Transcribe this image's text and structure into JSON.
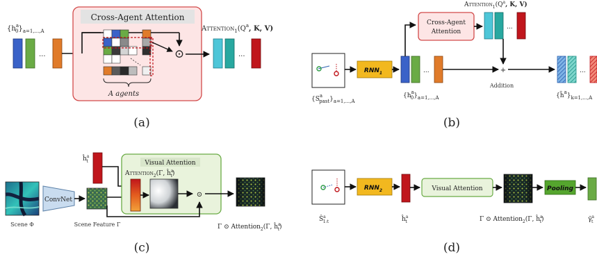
{
  "colors": {
    "blue": "#3a62c8",
    "green": "#6aab45",
    "orange": "#e07b2a",
    "cyan": "#4ec6d8",
    "teal": "#28a8a0",
    "red": "#c0161c",
    "attn_bg": "#fde5e5",
    "attn_border": "#d24a4a",
    "visual_bg": "#e9f3dc",
    "visual_border": "#6aab45",
    "rnn_fill": "#f2b81f",
    "pooling_fill": "#55a52e"
  },
  "panel_a": {
    "caption": "(a)",
    "input_label": "{h",
    "input_sup": "a",
    "input_sub": "0",
    "input_sub2": "a=1,...,A",
    "ellipsis": "...",
    "box_title": "Cross-Agent Attention",
    "dot_symbol": "⊙",
    "agents_label": "A agents",
    "output_label": "Attention",
    "output_args": "(Q",
    "output_args2": ", K, V)",
    "output_sup": "a",
    "output_sub": "1"
  },
  "panel_b": {
    "caption": "(b)",
    "scene_label": "{S",
    "scene_sup": "a",
    "scene_sub": "past",
    "scene_sub2": "a=1,...,A",
    "rnn_label": "RNN",
    "rnn_sub": "1",
    "hidden_label": "{h",
    "hidden_sup": "a",
    "hidden_sub": "0",
    "hidden_sub2": "a=1,...,A",
    "attn_title_1": "Cross-Agent",
    "attn_title_2": "Attention",
    "attn_out_label": "Attention",
    "attn_out_sub": "1",
    "attn_out_args": "(Q",
    "attn_out_sup": "a",
    "attn_out_args2": ", K, V)",
    "plus_symbol": "+",
    "addition_label": "Addition",
    "out_label": "{h̃",
    "out_sup": "a",
    "out_sub": "k=1,...,A",
    "ellipsis": "..."
  },
  "panel_c": {
    "caption": "(c)",
    "scene_label": "Scene Φ",
    "convnet_label": "ConvNet",
    "feature_label": "Scene Feature Γ",
    "h_label": "ĥ",
    "h_sup": "a",
    "h_sub": "t",
    "box_title": "Visual Attention",
    "attn_label": "Attention",
    "attn_sub": "2",
    "attn_args": "(Γ, ĥ",
    "attn_args_sup": "a",
    "attn_args_sub": "t",
    "attn_args_end": ")",
    "dot_symbol": "⊙",
    "out_label": "Γ ⊙ Attention",
    "out_sub": "2",
    "out_args": "(Γ, ĥ",
    "out_args_sup": "a",
    "out_args_sub": "t",
    "out_args_end": ")"
  },
  "panel_d": {
    "caption": "(d)",
    "scene_label": "Ŝ",
    "scene_sup": "a",
    "scene_sub": "1:t",
    "rnn_label": "RNN",
    "rnn_sub": "2",
    "h_label": "ĥ",
    "h_sup": "a",
    "h_sub": "t",
    "box_title": "Visual Attention",
    "pooling_label": "Pooling",
    "feat_label": "Γ ⊙ Attention",
    "feat_sub": "2",
    "feat_args": "(Γ, ĥ",
    "feat_args_sup": "a",
    "feat_args_sub": "t",
    "feat_args_end": ")",
    "out_label": "γ̃",
    "out_sup": "a",
    "out_sub": "t"
  }
}
